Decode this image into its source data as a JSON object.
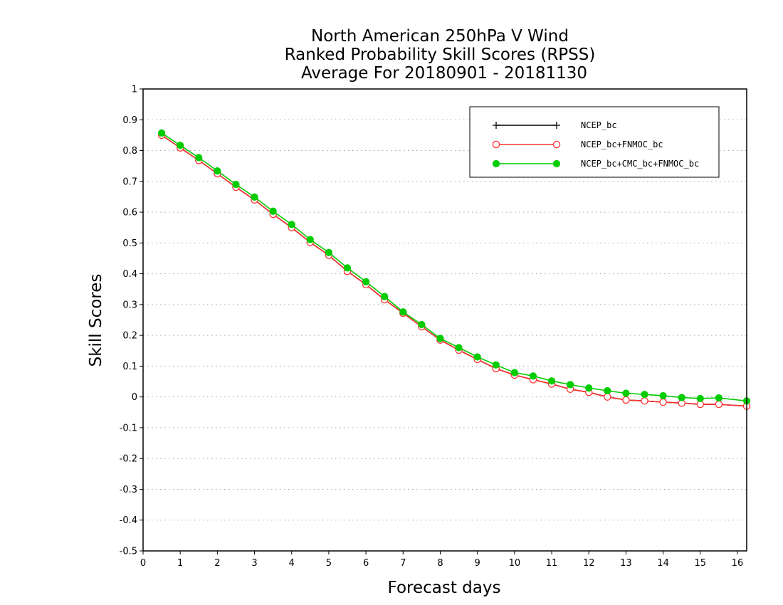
{
  "chart_data": {
    "type": "line",
    "title_lines": [
      "North American 250hPa V Wind",
      "Ranked Probability Skill Scores (RPSS)",
      "Average For 20180901 - 20181130"
    ],
    "xlabel": "Forecast days",
    "ylabel": "Skill Scores",
    "xlim": [
      0,
      16.25
    ],
    "ylim": [
      -0.5,
      1
    ],
    "x_ticks": [
      "0",
      "1",
      "2",
      "3",
      "4",
      "5",
      "6",
      "7",
      "8",
      "9",
      "10",
      "11",
      "12",
      "13",
      "14",
      "15",
      "16"
    ],
    "y_ticks": [
      "1",
      "0.9",
      "0.8",
      "0.7",
      "0.6",
      "0.5",
      "0.4",
      "0.3",
      "0.2",
      "0.1",
      "0",
      "-0.1",
      "-0.2",
      "-0.3",
      "-0.4",
      "-0.5"
    ],
    "grid": "dotted horizontal",
    "legend_position": "top-right",
    "x": [
      0.5,
      1,
      1.5,
      2,
      2.5,
      3,
      3.5,
      4,
      4.5,
      5,
      5.5,
      6,
      6.5,
      7,
      7.5,
      8,
      8.5,
      9,
      9.5,
      10,
      10.5,
      11,
      11.5,
      12,
      12.5,
      13,
      13.5,
      14,
      14.5,
      15,
      15.5,
      16.25
    ],
    "series": [
      {
        "name": "NCEP_bc",
        "color": "#000000",
        "marker": "plus",
        "values": [
          0.85,
          0.809,
          0.768,
          0.725,
          0.681,
          0.64,
          0.593,
          0.55,
          0.502,
          0.46,
          0.408,
          0.365,
          0.316,
          0.272,
          0.228,
          0.185,
          0.152,
          0.122,
          0.092,
          0.071,
          0.056,
          0.042,
          0.025,
          0.015,
          0.0,
          -0.01,
          -0.013,
          -0.017,
          -0.02,
          -0.024,
          -0.024,
          -0.03
        ]
      },
      {
        "name": "NCEP_bc+FNMOC_bc",
        "color": "#ff3333",
        "marker": "open-circle",
        "values": [
          0.85,
          0.809,
          0.768,
          0.725,
          0.681,
          0.64,
          0.593,
          0.55,
          0.502,
          0.46,
          0.408,
          0.365,
          0.316,
          0.272,
          0.228,
          0.185,
          0.152,
          0.122,
          0.092,
          0.071,
          0.056,
          0.042,
          0.025,
          0.015,
          0.0,
          -0.01,
          -0.013,
          -0.017,
          -0.02,
          -0.024,
          -0.024,
          -0.03
        ]
      },
      {
        "name": "NCEP_bc+CMC_bc+FNMOC_bc",
        "color": "#00cc00",
        "marker": "filled-circle",
        "values": [
          0.857,
          0.817,
          0.777,
          0.734,
          0.69,
          0.649,
          0.603,
          0.56,
          0.511,
          0.469,
          0.419,
          0.374,
          0.326,
          0.276,
          0.235,
          0.19,
          0.16,
          0.13,
          0.104,
          0.079,
          0.068,
          0.052,
          0.04,
          0.029,
          0.02,
          0.012,
          0.008,
          0.004,
          -0.002,
          -0.005,
          -0.003,
          -0.013
        ]
      }
    ]
  }
}
